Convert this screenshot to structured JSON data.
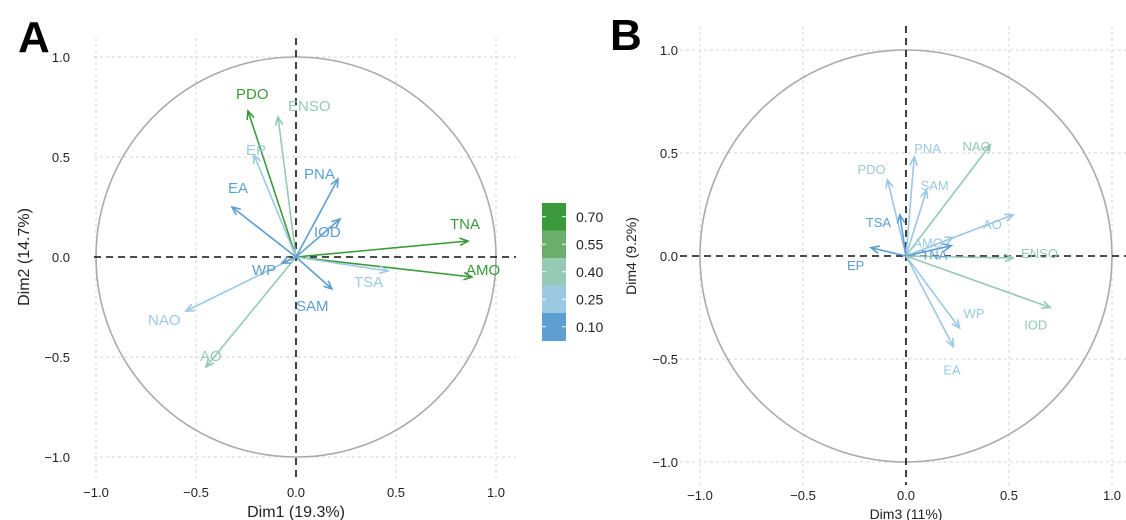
{
  "panel_labels": [
    "A",
    "B"
  ],
  "legend": {
    "breaks": [
      "0.70",
      "0.55",
      "0.40",
      "0.25",
      "0.10"
    ],
    "colors": [
      "#3a9a3a",
      "#6aae6a",
      "#96c9b6",
      "#9bc9e3",
      "#5d9fd0"
    ]
  },
  "chart_data": [
    {
      "type": "scatter",
      "subtype": "pca-variable-correlation-circle",
      "panel": "A",
      "xlabel": "Dim1 (19.3%)",
      "ylabel": "Dim2 (14.7%)",
      "xlim": [
        -1.0,
        1.0
      ],
      "ylim": [
        -1.0,
        1.0
      ],
      "xticks": [
        "−1.0",
        "−0.5",
        "0.0",
        "0.5",
        "1.0"
      ],
      "yticks": [
        "−1.0",
        "−0.5",
        "0.0",
        "0.5",
        "1.0"
      ],
      "grid": true,
      "variables": [
        {
          "name": "TNA",
          "x": 0.86,
          "y": 0.08,
          "contrib": 0.72
        },
        {
          "name": "AMO",
          "x": 0.88,
          "y": -0.1,
          "contrib": 0.72
        },
        {
          "name": "PDO",
          "x": -0.24,
          "y": 0.73,
          "contrib": 0.65
        },
        {
          "name": "ENSO",
          "x": -0.09,
          "y": 0.7,
          "contrib": 0.45
        },
        {
          "name": "EP",
          "x": -0.21,
          "y": 0.51,
          "contrib": 0.28
        },
        {
          "name": "AO",
          "x": -0.45,
          "y": -0.55,
          "contrib": 0.33
        },
        {
          "name": "NAO",
          "x": -0.55,
          "y": -0.27,
          "contrib": 0.27
        },
        {
          "name": "TSA",
          "x": 0.46,
          "y": -0.07,
          "contrib": 0.2
        },
        {
          "name": "EA",
          "x": -0.32,
          "y": 0.25,
          "contrib": 0.14
        },
        {
          "name": "PNA",
          "x": 0.21,
          "y": 0.39,
          "contrib": 0.16
        },
        {
          "name": "IOD",
          "x": 0.22,
          "y": 0.19,
          "contrib": 0.14
        },
        {
          "name": "WP",
          "x": -0.07,
          "y": -0.03,
          "contrib": 0.1
        },
        {
          "name": "SAM",
          "x": 0.18,
          "y": -0.16,
          "contrib": 0.1
        }
      ]
    },
    {
      "type": "scatter",
      "subtype": "pca-variable-correlation-circle",
      "panel": "B",
      "xlabel": "Dim3 (11%)",
      "ylabel": "Dim4 (9.2%)",
      "xlim": [
        -1.0,
        1.0
      ],
      "ylim": [
        -1.0,
        1.0
      ],
      "xticks": [
        "−1.0",
        "−0.5",
        "0.0",
        "0.5",
        "1.0"
      ],
      "yticks": [
        "−1.0",
        "−0.5",
        "0.0",
        "0.5",
        "1.0"
      ],
      "grid": true,
      "variables": [
        {
          "name": "NAO",
          "x": 0.41,
          "y": 0.54,
          "contrib": 0.4
        },
        {
          "name": "PNA",
          "x": 0.04,
          "y": 0.48,
          "contrib": 0.22
        },
        {
          "name": "PDO",
          "x": -0.09,
          "y": 0.37,
          "contrib": 0.2
        },
        {
          "name": "SAM",
          "x": 0.1,
          "y": 0.32,
          "contrib": 0.18
        },
        {
          "name": "TSA",
          "x": -0.03,
          "y": 0.2,
          "contrib": 0.15
        },
        {
          "name": "AO",
          "x": 0.52,
          "y": 0.2,
          "contrib": 0.3
        },
        {
          "name": "AMO",
          "x": 0.23,
          "y": 0.09,
          "contrib": 0.18
        },
        {
          "name": "ENSO",
          "x": 0.52,
          "y": -0.01,
          "contrib": 0.4
        },
        {
          "name": "EP",
          "x": -0.17,
          "y": 0.04,
          "contrib": 0.15
        },
        {
          "name": "TNA",
          "x": 0.22,
          "y": 0.05,
          "contrib": 0.15
        },
        {
          "name": "IOD",
          "x": 0.7,
          "y": -0.25,
          "contrib": 0.45
        },
        {
          "name": "WP",
          "x": 0.26,
          "y": -0.35,
          "contrib": 0.22
        },
        {
          "name": "EA",
          "x": 0.23,
          "y": -0.44,
          "contrib": 0.22
        }
      ]
    }
  ]
}
